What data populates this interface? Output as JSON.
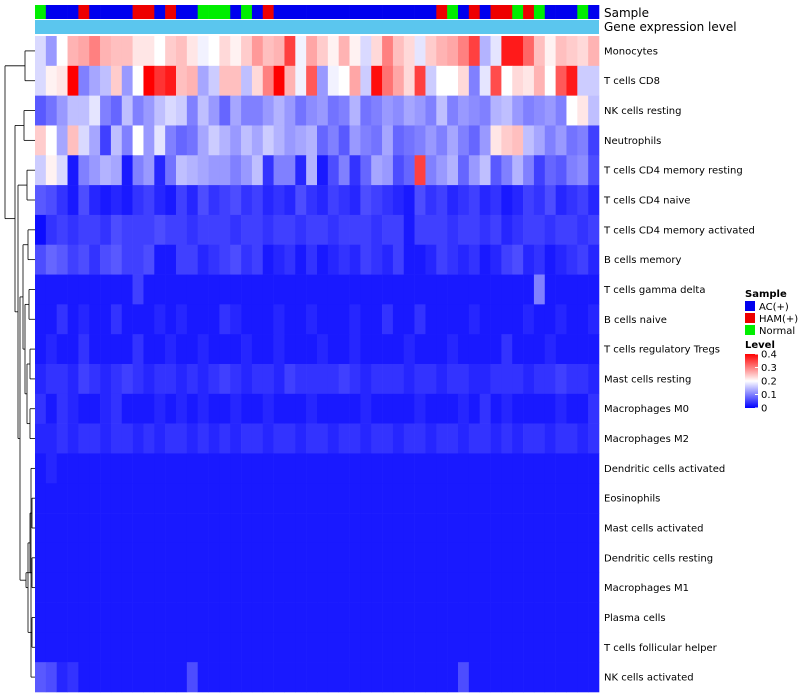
{
  "chart_data": {
    "type": "heatmap",
    "title": "",
    "annotations": {
      "sample_label": "Sample",
      "expression_label": "Gene expression level",
      "samples": [
        "Normal",
        "AC(+)",
        "AC(+)",
        "AC(+)",
        "HAM(+)",
        "AC(+)",
        "AC(+)",
        "AC(+)",
        "AC(+)",
        "HAM(+)",
        "HAM(+)",
        "AC(+)",
        "HAM(+)",
        "AC(+)",
        "AC(+)",
        "Normal",
        "Normal",
        "Normal",
        "AC(+)",
        "Normal",
        "AC(+)",
        "HAM(+)",
        "AC(+)",
        "AC(+)",
        "AC(+)",
        "AC(+)",
        "AC(+)",
        "AC(+)",
        "AC(+)",
        "AC(+)",
        "AC(+)",
        "AC(+)",
        "AC(+)",
        "AC(+)",
        "AC(+)",
        "AC(+)",
        "AC(+)",
        "HAM(+)",
        "Normal",
        "AC(+)",
        "HAM(+)",
        "AC(+)",
        "HAM(+)",
        "HAM(+)",
        "Normal",
        "HAM(+)",
        "Normal",
        "AC(+)",
        "AC(+)",
        "AC(+)",
        "Normal",
        "AC(+)"
      ]
    },
    "rows": [
      "Monocytes",
      "T cells CD8",
      "NK cells resting",
      "Neutrophils",
      "T cells CD4 memory resting",
      "T cells CD4 naive",
      "T cells CD4 memory activated",
      "B cells memory",
      "T cells gamma delta",
      "B cells naive",
      "T cells regulatory  Tregs",
      "Mast cells resting",
      "Macrophages M0",
      "Macrophages M2",
      "Dendritic cells activated",
      "Eosinophils",
      "Mast cells activated",
      "Dendritic cells resting",
      "Macrophages M1",
      "Plasma cells",
      "T cells follicular helper",
      "NK cells activated"
    ],
    "n_columns": 52,
    "row_templates": [
      [
        0.17,
        0.12,
        0.2,
        0.26,
        0.27,
        0.3,
        0.26,
        0.25,
        0.25,
        0.22,
        0.22,
        0.2,
        0.24,
        0.25,
        0.22,
        0.19,
        0.2,
        0.23,
        0.21,
        0.24,
        0.28,
        0.25,
        0.26,
        0.35,
        0.19,
        0.27,
        0.24,
        0.21,
        0.26,
        0.21,
        0.17,
        0.23,
        0.3,
        0.25,
        0.23,
        0.18,
        0.24,
        0.26,
        0.27,
        0.3,
        0.35,
        0.14,
        0.18,
        0.38,
        0.38,
        0.32,
        0.25,
        0.21,
        0.25,
        0.24,
        0.23,
        0.26
      ],
      [
        0.17,
        0.21,
        0.22,
        0.4,
        0.1,
        0.13,
        0.15,
        0.24,
        0.12,
        0.2,
        0.4,
        0.36,
        0.38,
        0.25,
        0.26,
        0.13,
        0.16,
        0.25,
        0.25,
        0.15,
        0.23,
        0.3,
        0.4,
        0.26,
        0.19,
        0.33,
        0.12,
        0.19,
        0.2,
        0.27,
        0.16,
        0.39,
        0.31,
        0.27,
        0.23,
        0.35,
        0.16,
        0.2,
        0.2,
        0.23,
        0.1,
        0.18,
        0.34,
        0.2,
        0.23,
        0.22,
        0.26,
        0.2,
        0.33,
        0.38,
        0.16,
        0.16
      ],
      [
        0.07,
        0.09,
        0.12,
        0.15,
        0.15,
        0.18,
        0.1,
        0.08,
        0.15,
        0.1,
        0.12,
        0.15,
        0.17,
        0.16,
        0.1,
        0.15,
        0.12,
        0.08,
        0.13,
        0.1,
        0.1,
        0.12,
        0.14,
        0.12,
        0.09,
        0.11,
        0.12,
        0.09,
        0.1,
        0.14,
        0.09,
        0.1,
        0.12,
        0.11,
        0.13,
        0.12,
        0.1,
        0.15,
        0.1,
        0.12,
        0.11,
        0.1,
        0.14,
        0.15,
        0.12,
        0.1,
        0.11,
        0.12,
        0.1,
        0.2,
        0.22,
        0.15
      ],
      [
        0.24,
        0.2,
        0.13,
        0.25,
        0.17,
        0.13,
        0.05,
        0.15,
        0.1,
        0.2,
        0.12,
        0.18,
        0.1,
        0.08,
        0.09,
        0.13,
        0.16,
        0.14,
        0.12,
        0.15,
        0.13,
        0.16,
        0.14,
        0.12,
        0.13,
        0.14,
        0.08,
        0.1,
        0.07,
        0.12,
        0.1,
        0.09,
        0.13,
        0.08,
        0.09,
        0.1,
        0.12,
        0.1,
        0.13,
        0.1,
        0.08,
        0.12,
        0.22,
        0.24,
        0.25,
        0.15,
        0.13,
        0.1,
        0.12,
        0.09,
        0.1,
        0.05
      ],
      [
        0.16,
        0.21,
        0.17,
        0.02,
        0.1,
        0.12,
        0.14,
        0.13,
        0.02,
        0.1,
        0.12,
        0.03,
        0.09,
        0.15,
        0.14,
        0.13,
        0.12,
        0.12,
        0.1,
        0.12,
        0.15,
        0.04,
        0.1,
        0.1,
        0.03,
        0.14,
        0.02,
        0.06,
        0.1,
        0.04,
        0.08,
        0.13,
        0.12,
        0.06,
        0.08,
        0.35,
        0.1,
        0.12,
        0.14,
        0.08,
        0.12,
        0.15,
        0.07,
        0.1,
        0.14,
        0.1,
        0.05,
        0.08,
        0.07,
        0.1,
        0.11,
        0.06
      ],
      [
        0.07,
        0.06,
        0.04,
        0.02,
        0.06,
        0.03,
        0.02,
        0.03,
        0.02,
        0.04,
        0.05,
        0.03,
        0.02,
        0.05,
        0.03,
        0.06,
        0.04,
        0.05,
        0.06,
        0.04,
        0.05,
        0.03,
        0.04,
        0.03,
        0.06,
        0.04,
        0.03,
        0.05,
        0.04,
        0.03,
        0.06,
        0.05,
        0.04,
        0.03,
        0.02,
        0.06,
        0.04,
        0.05,
        0.03,
        0.04,
        0.05,
        0.03,
        0.04,
        0.02,
        0.03,
        0.05,
        0.04,
        0.06,
        0.03,
        0.04,
        0.05,
        0.03
      ],
      [
        0.01,
        0.04,
        0.05,
        0.04,
        0.05,
        0.05,
        0.04,
        0.06,
        0.05,
        0.05,
        0.05,
        0.06,
        0.05,
        0.05,
        0.04,
        0.05,
        0.05,
        0.05,
        0.04,
        0.05,
        0.05,
        0.04,
        0.05,
        0.05,
        0.04,
        0.05,
        0.05,
        0.04,
        0.05,
        0.05,
        0.05,
        0.04,
        0.05,
        0.05,
        0.02,
        0.05,
        0.05,
        0.05,
        0.04,
        0.05,
        0.05,
        0.04,
        0.05,
        0.03,
        0.04,
        0.05,
        0.05,
        0.04,
        0.05,
        0.05,
        0.04,
        0.05
      ],
      [
        0.06,
        0.08,
        0.07,
        0.05,
        0.06,
        0.04,
        0.06,
        0.07,
        0.05,
        0.05,
        0.06,
        0.02,
        0.02,
        0.05,
        0.05,
        0.03,
        0.04,
        0.05,
        0.06,
        0.04,
        0.05,
        0.02,
        0.03,
        0.04,
        0.02,
        0.04,
        0.02,
        0.03,
        0.04,
        0.03,
        0.05,
        0.04,
        0.03,
        0.05,
        0.02,
        0.02,
        0.03,
        0.05,
        0.04,
        0.03,
        0.04,
        0.02,
        0.03,
        0.05,
        0.06,
        0.03,
        0.04,
        0.02,
        0.03,
        0.04,
        0.05,
        0.03
      ],
      [
        0.02,
        0.02,
        0.02,
        0.02,
        0.02,
        0.02,
        0.02,
        0.02,
        0.02,
        0.05,
        0.02,
        0.02,
        0.02,
        0.02,
        0.02,
        0.02,
        0.02,
        0.02,
        0.02,
        0.02,
        0.02,
        0.02,
        0.02,
        0.02,
        0.02,
        0.02,
        0.02,
        0.02,
        0.02,
        0.02,
        0.02,
        0.02,
        0.02,
        0.02,
        0.02,
        0.02,
        0.02,
        0.02,
        0.02,
        0.02,
        0.02,
        0.02,
        0.02,
        0.02,
        0.02,
        0.02,
        0.1,
        0.02,
        0.02,
        0.02,
        0.02,
        0.02
      ],
      [
        0.02,
        0.02,
        0.04,
        0.02,
        0.03,
        0.02,
        0.02,
        0.04,
        0.02,
        0.02,
        0.02,
        0.03,
        0.02,
        0.03,
        0.02,
        0.02,
        0.02,
        0.04,
        0.03,
        0.02,
        0.02,
        0.02,
        0.03,
        0.02,
        0.02,
        0.03,
        0.02,
        0.02,
        0.02,
        0.03,
        0.02,
        0.02,
        0.04,
        0.02,
        0.02,
        0.04,
        0.02,
        0.02,
        0.02,
        0.02,
        0.03,
        0.02,
        0.02,
        0.02,
        0.02,
        0.03,
        0.02,
        0.02,
        0.03,
        0.02,
        0.02,
        0.03
      ],
      [
        0.02,
        0.03,
        0.02,
        0.02,
        0.04,
        0.02,
        0.02,
        0.02,
        0.02,
        0.04,
        0.02,
        0.02,
        0.03,
        0.02,
        0.02,
        0.03,
        0.02,
        0.02,
        0.02,
        0.03,
        0.02,
        0.02,
        0.03,
        0.02,
        0.02,
        0.02,
        0.03,
        0.02,
        0.02,
        0.03,
        0.02,
        0.02,
        0.02,
        0.02,
        0.03,
        0.02,
        0.02,
        0.02,
        0.03,
        0.02,
        0.02,
        0.02,
        0.02,
        0.04,
        0.02,
        0.02,
        0.02,
        0.03,
        0.02,
        0.02,
        0.02,
        0.02
      ],
      [
        0.03,
        0.04,
        0.04,
        0.03,
        0.05,
        0.04,
        0.03,
        0.04,
        0.05,
        0.04,
        0.03,
        0.04,
        0.04,
        0.03,
        0.04,
        0.03,
        0.04,
        0.05,
        0.04,
        0.03,
        0.04,
        0.04,
        0.03,
        0.05,
        0.04,
        0.04,
        0.04,
        0.04,
        0.05,
        0.04,
        0.03,
        0.04,
        0.04,
        0.04,
        0.03,
        0.04,
        0.04,
        0.03,
        0.04,
        0.04,
        0.03,
        0.03,
        0.04,
        0.04,
        0.04,
        0.03,
        0.04,
        0.04,
        0.05,
        0.04,
        0.04,
        0.03
      ],
      [
        0.04,
        0.02,
        0.04,
        0.03,
        0.02,
        0.02,
        0.03,
        0.04,
        0.02,
        0.02,
        0.02,
        0.03,
        0.02,
        0.03,
        0.02,
        0.03,
        0.02,
        0.02,
        0.03,
        0.02,
        0.02,
        0.03,
        0.02,
        0.02,
        0.02,
        0.03,
        0.02,
        0.02,
        0.02,
        0.02,
        0.03,
        0.02,
        0.02,
        0.02,
        0.02,
        0.03,
        0.02,
        0.02,
        0.02,
        0.03,
        0.02,
        0.04,
        0.02,
        0.03,
        0.02,
        0.02,
        0.02,
        0.02,
        0.03,
        0.02,
        0.02,
        0.04
      ],
      [
        0.03,
        0.03,
        0.04,
        0.03,
        0.04,
        0.04,
        0.03,
        0.04,
        0.04,
        0.03,
        0.04,
        0.03,
        0.04,
        0.04,
        0.03,
        0.04,
        0.03,
        0.04,
        0.03,
        0.04,
        0.04,
        0.03,
        0.04,
        0.04,
        0.03,
        0.04,
        0.04,
        0.03,
        0.04,
        0.04,
        0.03,
        0.04,
        0.04,
        0.03,
        0.04,
        0.04,
        0.03,
        0.04,
        0.04,
        0.03,
        0.04,
        0.04,
        0.03,
        0.04,
        0.03,
        0.04,
        0.04,
        0.03,
        0.04,
        0.04,
        0.03,
        0.04
      ],
      [
        0.02,
        0.03,
        0.02,
        0.02,
        0.02,
        0.02,
        0.02,
        0.02,
        0.02,
        0.02,
        0.02,
        0.02,
        0.02,
        0.02,
        0.02,
        0.02,
        0.02,
        0.02,
        0.02,
        0.02,
        0.02,
        0.02,
        0.02,
        0.02,
        0.02,
        0.02,
        0.02,
        0.02,
        0.02,
        0.02,
        0.02,
        0.02,
        0.02,
        0.02,
        0.02,
        0.02,
        0.02,
        0.02,
        0.02,
        0.02,
        0.02,
        0.02,
        0.02,
        0.02,
        0.02,
        0.02,
        0.02,
        0.02,
        0.02,
        0.02,
        0.02,
        0.02
      ],
      [
        0.02,
        0.02,
        0.02,
        0.02,
        0.02,
        0.02,
        0.02,
        0.02,
        0.02,
        0.02,
        0.02,
        0.02,
        0.02,
        0.02,
        0.02,
        0.02,
        0.02,
        0.02,
        0.02,
        0.02,
        0.02,
        0.02,
        0.02,
        0.02,
        0.02,
        0.02,
        0.02,
        0.02,
        0.02,
        0.02,
        0.02,
        0.02,
        0.02,
        0.02,
        0.02,
        0.02,
        0.02,
        0.02,
        0.02,
        0.02,
        0.02,
        0.02,
        0.02,
        0.02,
        0.02,
        0.02,
        0.02,
        0.02,
        0.02,
        0.02,
        0.02,
        0.02
      ],
      [
        0.02,
        0.02,
        0.02,
        0.02,
        0.02,
        0.02,
        0.02,
        0.02,
        0.02,
        0.02,
        0.02,
        0.02,
        0.02,
        0.02,
        0.02,
        0.02,
        0.02,
        0.02,
        0.02,
        0.02,
        0.02,
        0.02,
        0.02,
        0.02,
        0.02,
        0.02,
        0.02,
        0.02,
        0.02,
        0.02,
        0.02,
        0.02,
        0.02,
        0.02,
        0.02,
        0.02,
        0.02,
        0.02,
        0.02,
        0.02,
        0.02,
        0.02,
        0.02,
        0.02,
        0.02,
        0.02,
        0.02,
        0.02,
        0.02,
        0.02,
        0.02,
        0.02
      ],
      [
        0.02,
        0.02,
        0.02,
        0.02,
        0.02,
        0.02,
        0.02,
        0.02,
        0.02,
        0.02,
        0.02,
        0.02,
        0.02,
        0.02,
        0.02,
        0.02,
        0.02,
        0.02,
        0.02,
        0.02,
        0.02,
        0.02,
        0.02,
        0.02,
        0.02,
        0.02,
        0.02,
        0.02,
        0.02,
        0.02,
        0.02,
        0.02,
        0.02,
        0.02,
        0.02,
        0.02,
        0.02,
        0.02,
        0.02,
        0.02,
        0.02,
        0.02,
        0.02,
        0.02,
        0.02,
        0.02,
        0.02,
        0.02,
        0.02,
        0.02,
        0.02,
        0.02
      ],
      [
        0.02,
        0.02,
        0.02,
        0.02,
        0.02,
        0.02,
        0.02,
        0.02,
        0.02,
        0.02,
        0.02,
        0.02,
        0.02,
        0.02,
        0.02,
        0.02,
        0.02,
        0.02,
        0.02,
        0.02,
        0.02,
        0.02,
        0.02,
        0.02,
        0.02,
        0.02,
        0.02,
        0.02,
        0.02,
        0.02,
        0.02,
        0.02,
        0.02,
        0.02,
        0.02,
        0.02,
        0.02,
        0.02,
        0.02,
        0.02,
        0.02,
        0.02,
        0.02,
        0.02,
        0.02,
        0.02,
        0.02,
        0.02,
        0.02,
        0.02,
        0.02,
        0.02
      ],
      [
        0.02,
        0.02,
        0.02,
        0.02,
        0.02,
        0.02,
        0.02,
        0.02,
        0.02,
        0.02,
        0.02,
        0.02,
        0.02,
        0.02,
        0.02,
        0.02,
        0.02,
        0.02,
        0.02,
        0.02,
        0.02,
        0.02,
        0.02,
        0.02,
        0.02,
        0.02,
        0.02,
        0.02,
        0.02,
        0.02,
        0.02,
        0.02,
        0.02,
        0.02,
        0.02,
        0.02,
        0.02,
        0.02,
        0.02,
        0.02,
        0.02,
        0.02,
        0.02,
        0.02,
        0.02,
        0.02,
        0.02,
        0.02,
        0.02,
        0.02,
        0.02,
        0.02
      ],
      [
        0.02,
        0.02,
        0.02,
        0.02,
        0.02,
        0.02,
        0.02,
        0.02,
        0.02,
        0.02,
        0.02,
        0.02,
        0.02,
        0.02,
        0.02,
        0.02,
        0.02,
        0.02,
        0.02,
        0.02,
        0.02,
        0.02,
        0.02,
        0.02,
        0.02,
        0.02,
        0.02,
        0.02,
        0.02,
        0.02,
        0.02,
        0.02,
        0.02,
        0.02,
        0.02,
        0.02,
        0.02,
        0.02,
        0.02,
        0.02,
        0.02,
        0.02,
        0.02,
        0.02,
        0.02,
        0.02,
        0.02,
        0.02,
        0.02,
        0.02,
        0.02,
        0.02
      ],
      [
        0.07,
        0.06,
        0.03,
        0.04,
        0.02,
        0.02,
        0.02,
        0.02,
        0.02,
        0.02,
        0.02,
        0.02,
        0.02,
        0.02,
        0.06,
        0.02,
        0.02,
        0.02,
        0.02,
        0.02,
        0.02,
        0.02,
        0.02,
        0.02,
        0.02,
        0.02,
        0.02,
        0.02,
        0.02,
        0.02,
        0.02,
        0.02,
        0.02,
        0.02,
        0.02,
        0.02,
        0.02,
        0.02,
        0.02,
        0.06,
        0.02,
        0.02,
        0.02,
        0.02,
        0.02,
        0.02,
        0.02,
        0.02,
        0.02,
        0.02,
        0.02,
        0.02
      ]
    ],
    "legend": {
      "sample_title": "Sample",
      "sample_entries": [
        {
          "label": "AC(+)",
          "color": "#0000ee"
        },
        {
          "label": "HAM(+)",
          "color": "#ee0000"
        },
        {
          "label": "Normal",
          "color": "#00ee00"
        }
      ],
      "level_title": "Level",
      "level_ticks": [
        0.4,
        0.3,
        0.2,
        0.1,
        0
      ],
      "level_range": [
        0,
        0.4
      ],
      "colorscale": [
        "#0000ff",
        "#ffffff",
        "#ff0000"
      ]
    },
    "expression_bar_color": "#5bc6ee"
  }
}
